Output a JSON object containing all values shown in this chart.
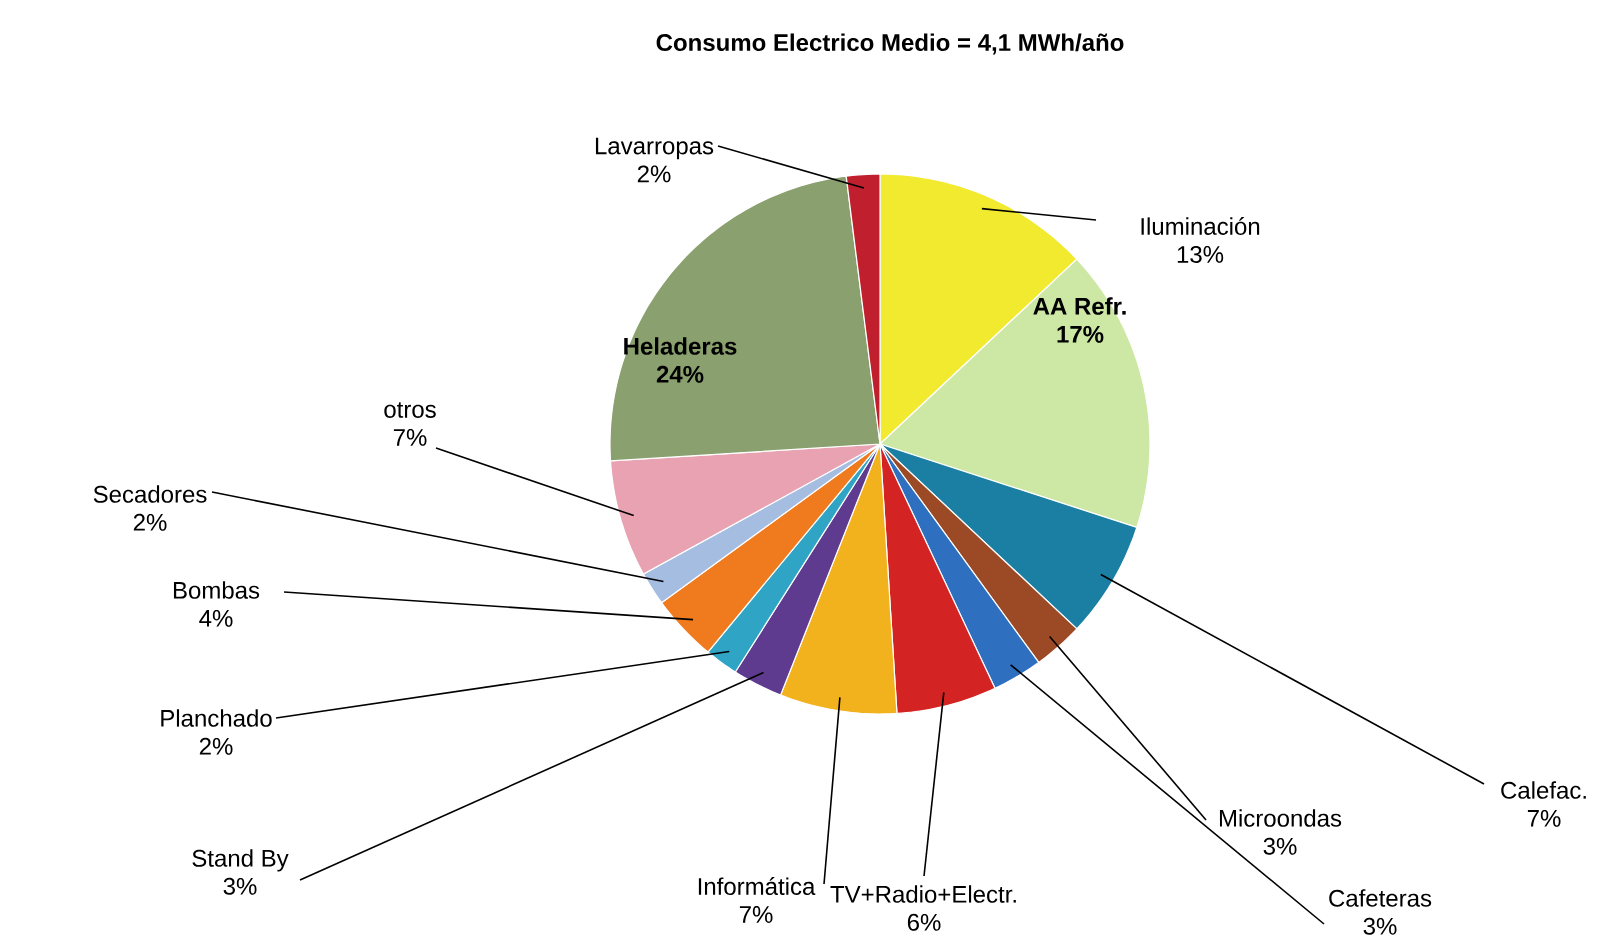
{
  "chart_data": {
    "type": "pie",
    "title": "Consumo Electrico Medio = 4,1 MWh/año",
    "categories": [
      "Iluminación",
      "AA Refr.",
      "Calefac.",
      "Microondas",
      "Cafeteras",
      "TV+Radio+Electr.",
      "Informática",
      "Stand By",
      "Planchado",
      "Bombas",
      "Secadores",
      "otros",
      "Heladeras",
      "Lavarropas"
    ],
    "values": [
      13,
      17,
      7,
      3,
      3,
      6,
      7,
      3,
      2,
      4,
      2,
      7,
      24,
      2
    ],
    "value_labels": [
      "13%",
      "17%",
      "7%",
      "3%",
      "3%",
      "6%",
      "7%",
      "3%",
      "2%",
      "4%",
      "2%",
      "7%",
      "24%",
      "2%"
    ],
    "colors": [
      "#f2ea2e",
      "#cde8a4",
      "#1b7fa3",
      "#9c4a25",
      "#2f6fc0",
      "#d42323",
      "#f2b21e",
      "#5e3b8e",
      "#2fa4c4",
      "#f07a1e",
      "#a6bde2",
      "#e8a2b2",
      "#8aa06e",
      "#c0202e"
    ]
  }
}
